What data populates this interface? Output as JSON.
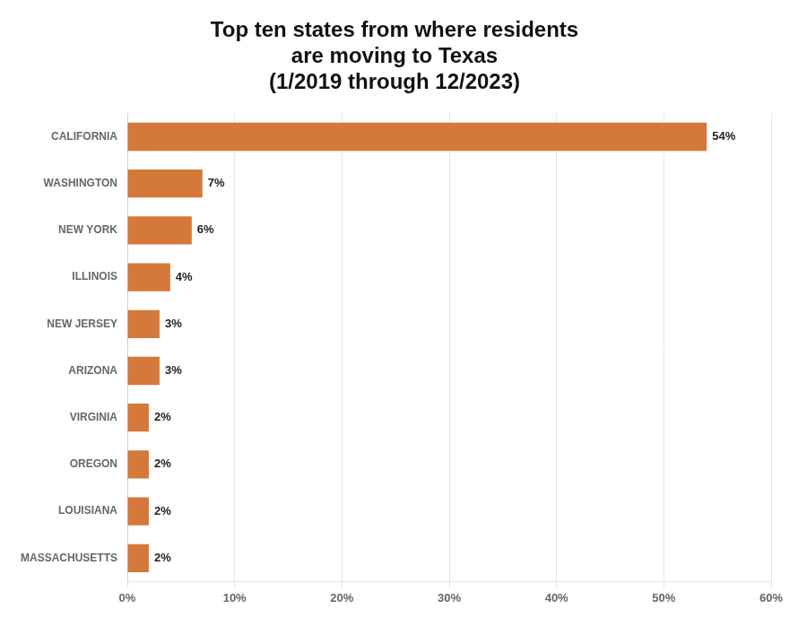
{
  "chart_data": {
    "type": "bar",
    "orientation": "horizontal",
    "title": "Top ten states from where residents\nare moving to Texas\n(1/2019 through 12/2023)",
    "categories": [
      "MASSACHUSETTS",
      "LOUISIANA",
      "OREGON",
      "VIRGINIA",
      "ARIZONA",
      "NEW JERSEY",
      "ILLINOIS",
      "NEW YORK",
      "WASHINGTON",
      "CALIFORNIA"
    ],
    "values": [
      2,
      2,
      2,
      2,
      3,
      3,
      4,
      6,
      7,
      54
    ],
    "value_labels": [
      "2%",
      "2%",
      "2%",
      "2%",
      "3%",
      "3%",
      "4%",
      "6%",
      "7%",
      "54%"
    ],
    "color": "#D4793A",
    "xlim": [
      0,
      60
    ],
    "xticks": [
      {
        "value": 0,
        "label": "0%"
      },
      {
        "value": 10,
        "label": "10%"
      },
      {
        "value": 20,
        "label": "20%"
      },
      {
        "value": 30,
        "label": "30%"
      },
      {
        "value": 40,
        "label": "40%"
      },
      {
        "value": 50,
        "label": "50%"
      },
      {
        "value": 60,
        "label": "60%"
      }
    ],
    "grid": true,
    "data_labels": true
  }
}
